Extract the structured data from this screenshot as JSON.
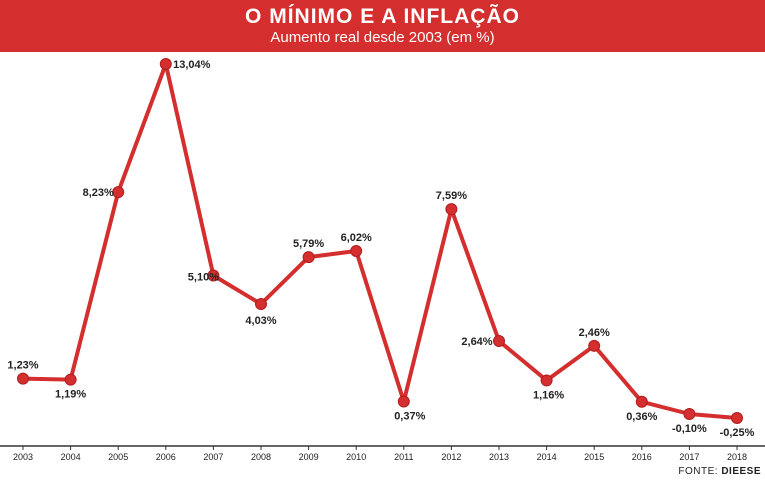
{
  "header": {
    "title": "O MÍNIMO E A INFLAÇÃO",
    "subtitle": "Aumento real desde 2003 (em %)"
  },
  "footer": {
    "source_prefix": "FONTE:",
    "source_name": "DIEESE"
  },
  "colors": {
    "accent": "#d42e2e",
    "line": "#d42e2e",
    "text": "#222222"
  },
  "chart_data": {
    "type": "line",
    "categories": [
      "2003",
      "2004",
      "2005",
      "2006",
      "2007",
      "2008",
      "2009",
      "2010",
      "2011",
      "2012",
      "2013",
      "2014",
      "2015",
      "2016",
      "2017",
      "2018"
    ],
    "values": [
      1.23,
      1.19,
      8.23,
      13.04,
      5.1,
      4.03,
      5.79,
      6.02,
      0.37,
      7.59,
      2.64,
      1.16,
      2.46,
      0.36,
      -0.1,
      -0.25
    ],
    "data_labels": [
      "1,23%",
      "1,19%",
      "8,23%",
      "13,04%",
      "5,10%",
      "4,03%",
      "5,79%",
      "6,02%",
      "0,37%",
      "7,59%",
      "2,64%",
      "1,16%",
      "2,46%",
      "0,36%",
      "-0,10%",
      "-0,25%"
    ],
    "grid": false,
    "legend": "none"
  }
}
